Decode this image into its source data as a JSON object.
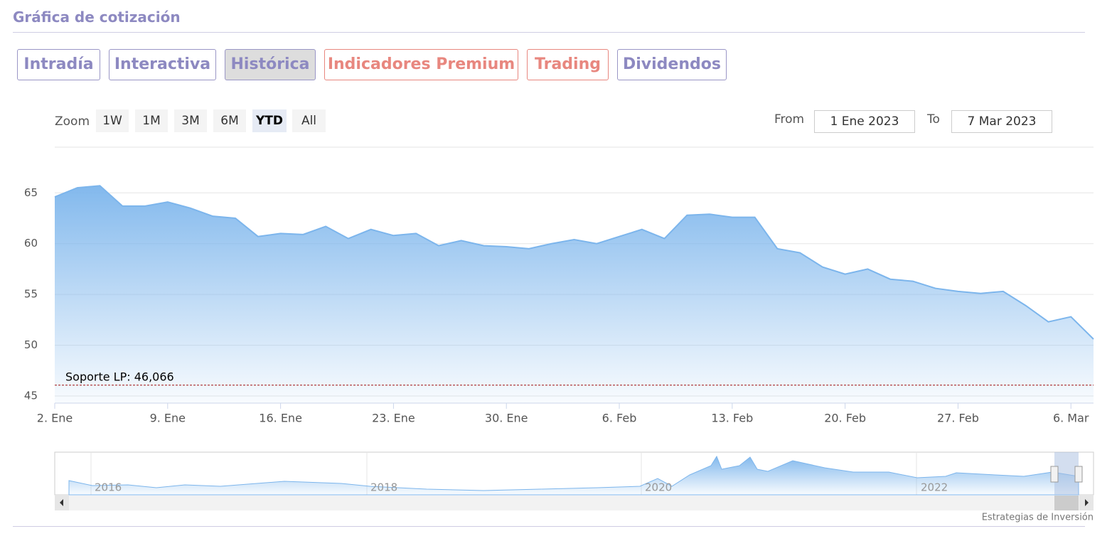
{
  "header": {
    "title": "Gráfica de cotización"
  },
  "tabs": [
    "Intradía",
    "Interactiva",
    "Histórica",
    "Indicadores Premium",
    "Trading",
    "Dividendos"
  ],
  "zoom": {
    "label": "Zoom",
    "buttons": [
      "1W",
      "1M",
      "3M",
      "6M",
      "YTD",
      "All"
    ]
  },
  "range": {
    "from_label": "From",
    "from": "1 Ene 2023",
    "to_label": "To",
    "to": "7 Mar 2023"
  },
  "chart_data": {
    "type": "area",
    "color": "#7cb5ec",
    "categories": [
      "2. Ene",
      null,
      null,
      null,
      null,
      "9. Ene",
      null,
      null,
      null,
      null,
      "16. Ene",
      null,
      null,
      null,
      null,
      "23. Ene",
      null,
      null,
      null,
      null,
      "30. Ene",
      null,
      null,
      null,
      null,
      "6. Feb",
      null,
      null,
      null,
      null,
      "13. Feb",
      null,
      null,
      null,
      null,
      "20. Feb",
      null,
      null,
      null,
      null,
      "27. Feb",
      null,
      null,
      null,
      null,
      "6. Mar",
      null
    ],
    "values": [
      64.6,
      65.5,
      65.7,
      63.7,
      63.7,
      64.1,
      63.5,
      62.7,
      62.5,
      60.7,
      61.0,
      60.9,
      61.7,
      60.5,
      61.4,
      60.8,
      61.0,
      59.8,
      60.3,
      59.8,
      59.7,
      59.5,
      60.0,
      60.4,
      60.0,
      60.7,
      61.4,
      60.5,
      62.8,
      62.9,
      62.6,
      62.6,
      59.5,
      59.1,
      57.7,
      57.0,
      57.5,
      56.5,
      56.3,
      55.6,
      55.3,
      55.1,
      55.3,
      53.9,
      52.3,
      52.8,
      50.6
    ],
    "ylim": [
      44.3,
      69.5
    ],
    "yticks": [
      45,
      50,
      55,
      60,
      65
    ],
    "grid": true,
    "support": {
      "value": 46.066,
      "label": "Soporte LP: 46,066",
      "color": "#a01010"
    }
  },
  "navigator": {
    "labels": [
      "2016",
      "2018",
      "2020",
      "2022"
    ]
  },
  "credit": "Estrategias de Inversión"
}
